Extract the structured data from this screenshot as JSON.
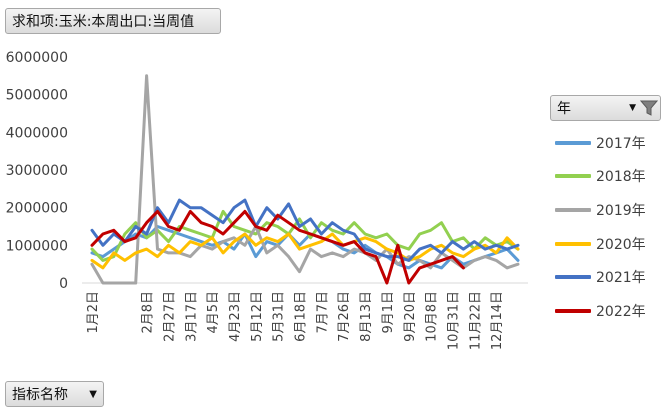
{
  "value_field": {
    "label": "求和项:玉米:本周出口:当周值"
  },
  "category_field": {
    "label": "指标名称"
  },
  "legend_field": {
    "label": "年"
  },
  "chart_data": {
    "type": "line",
    "title": "",
    "xlabel": "",
    "ylabel": "",
    "ylim": [
      0,
      6000000
    ],
    "yticks": [
      0,
      1000000,
      2000000,
      3000000,
      4000000,
      5000000,
      6000000
    ],
    "ytick_labels": [
      "0",
      "1000000",
      "2000000",
      "3000000",
      "4000000",
      "5000000",
      "6000000"
    ],
    "x_tick_labels": [
      "1月2日",
      "2月8日",
      "2月27日",
      "3月17日",
      "4月5日",
      "4月23日",
      "5月12日",
      "5月31日",
      "6月18日",
      "7月7日",
      "7月26日",
      "8月13日",
      "9月1日",
      "9月20日",
      "10月8日",
      "10月31日",
      "11月22日",
      "12月14日"
    ],
    "x_tick_positions": [
      0,
      5,
      7,
      9,
      11,
      13,
      15,
      17,
      19,
      21,
      23,
      25,
      27,
      29,
      31,
      33,
      35,
      37
    ],
    "x_count": 40,
    "legend_position": "right",
    "grid": false,
    "series": [
      {
        "name": "2017年",
        "color": "#5b9bd5",
        "values": [
          800000,
          700000,
          900000,
          1100000,
          1300000,
          1200000,
          1500000,
          1400000,
          1300000,
          1200000,
          1100000,
          1000000,
          1100000,
          900000,
          1300000,
          700000,
          1100000,
          1000000,
          1300000,
          1000000,
          1300000,
          1200000,
          1100000,
          900000,
          800000,
          1000000,
          800000,
          700000,
          500000,
          400000,
          600000,
          500000,
          400000,
          700000,
          500000,
          600000,
          700000,
          800000,
          900000,
          600000
        ]
      },
      {
        "name": "2018年",
        "color": "#92d050",
        "values": [
          900000,
          600000,
          700000,
          1300000,
          1600000,
          1200000,
          1400000,
          1100000,
          1500000,
          1400000,
          1300000,
          1200000,
          1900000,
          1500000,
          1400000,
          1300000,
          1600000,
          1500000,
          1300000,
          1700000,
          1200000,
          1600000,
          1400000,
          1300000,
          1600000,
          1300000,
          1200000,
          1300000,
          1000000,
          900000,
          1300000,
          1400000,
          1600000,
          1100000,
          1200000,
          900000,
          1200000,
          1000000,
          1100000,
          900000
        ]
      },
      {
        "name": "2019年",
        "color": "#a5a5a5",
        "values": [
          500000,
          0,
          0,
          0,
          0,
          5500000,
          900000,
          800000,
          800000,
          700000,
          1000000,
          900000,
          1100000,
          1200000,
          1000000,
          1500000,
          800000,
          1000000,
          700000,
          300000,
          900000,
          700000,
          800000,
          700000,
          900000,
          800000,
          600000,
          900000,
          500000,
          700000,
          600000,
          400000,
          800000,
          600000,
          400000,
          600000,
          700000,
          600000,
          400000,
          500000
        ]
      },
      {
        "name": "2020年",
        "color": "#ffc000",
        "values": [
          600000,
          400000,
          800000,
          600000,
          800000,
          900000,
          700000,
          1000000,
          800000,
          1100000,
          1000000,
          1200000,
          800000,
          1100000,
          1300000,
          1000000,
          1200000,
          1100000,
          1300000,
          900000,
          1000000,
          1100000,
          1300000,
          1000000,
          1100000,
          1200000,
          1100000,
          900000,
          800000,
          600000,
          700000,
          900000,
          1000000,
          800000,
          700000,
          900000,
          1000000,
          800000,
          1200000,
          900000
        ]
      },
      {
        "name": "2021年",
        "color": "#4472c4",
        "values": [
          1400000,
          1000000,
          1300000,
          1100000,
          1500000,
          1300000,
          2000000,
          1600000,
          2200000,
          2000000,
          2000000,
          1800000,
          1600000,
          2000000,
          2200000,
          1500000,
          2000000,
          1700000,
          2100000,
          1500000,
          1700000,
          1300000,
          1600000,
          1400000,
          1300000,
          900000,
          800000,
          700000,
          700000,
          600000,
          900000,
          1000000,
          800000,
          1100000,
          900000,
          1100000,
          900000,
          1000000,
          900000,
          1000000
        ]
      },
      {
        "name": "2022年",
        "color": "#c00000",
        "values": [
          1000000,
          1300000,
          1400000,
          1100000,
          1200000,
          1600000,
          1900000,
          1500000,
          1400000,
          1900000,
          1600000,
          1500000,
          1300000,
          1600000,
          1900000,
          1500000,
          1400000,
          1800000,
          1600000,
          1400000,
          1300000,
          1200000,
          1100000,
          1000000,
          1100000,
          800000,
          700000,
          0,
          1000000,
          0,
          400000,
          500000,
          600000,
          700000,
          400000
        ]
      }
    ]
  }
}
